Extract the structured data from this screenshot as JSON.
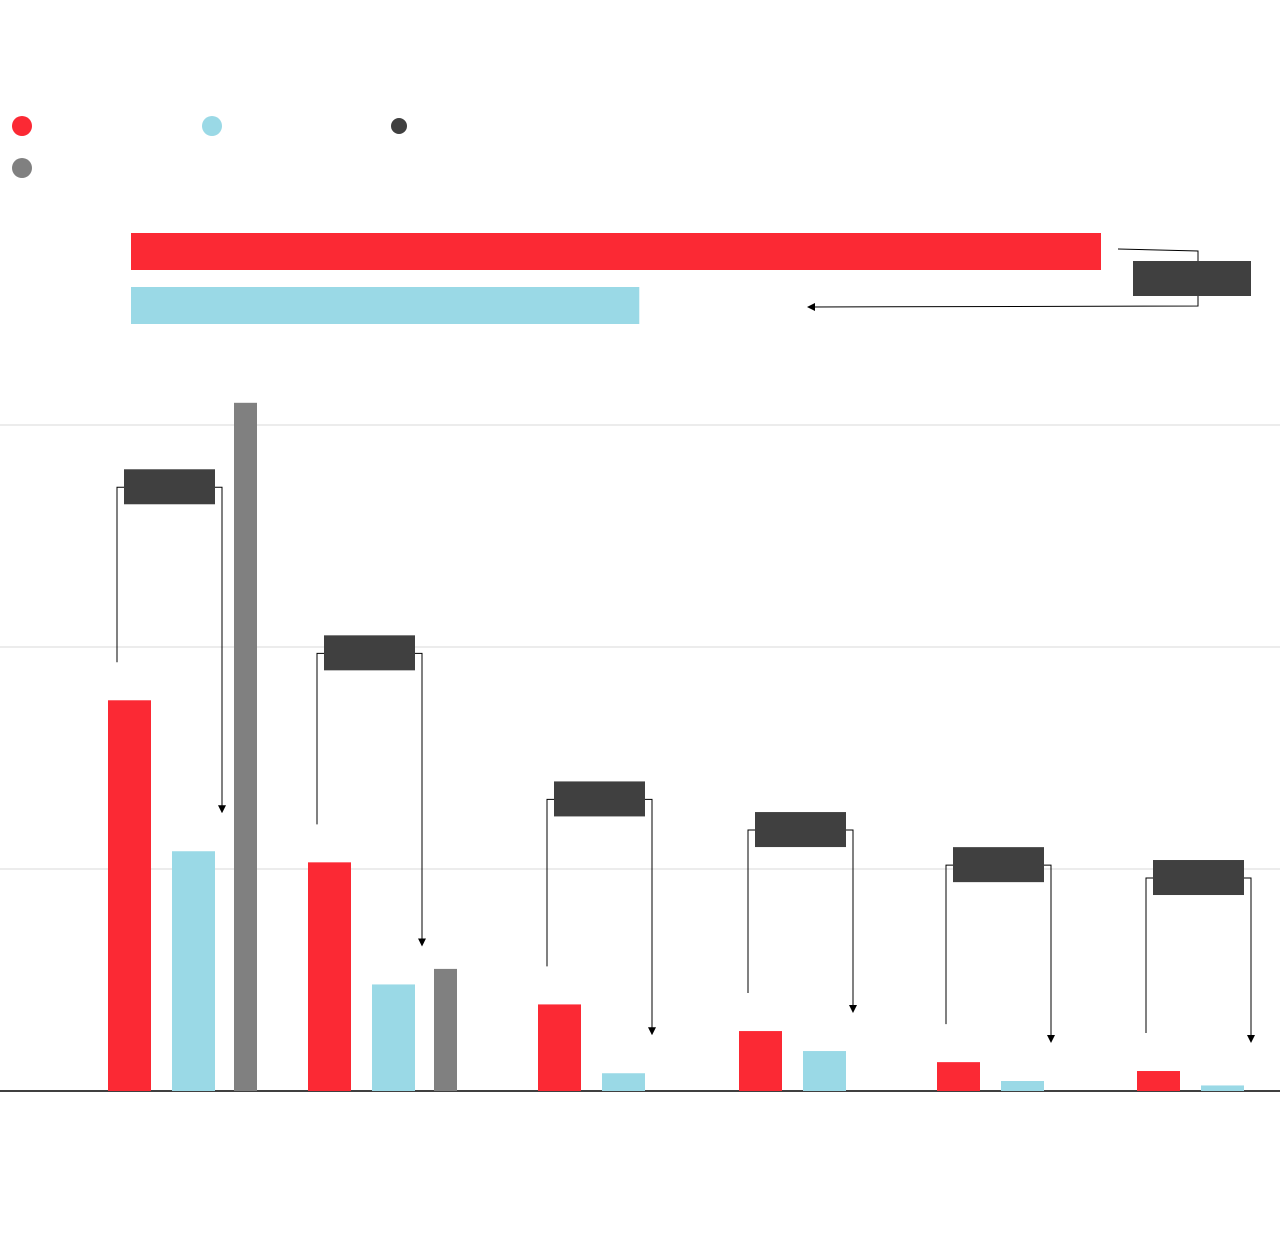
{
  "legend": [
    {
      "color": "#fb2934"
    },
    {
      "color": "#9ad9e6"
    },
    {
      "color": "#404040"
    },
    {
      "color": "#808080"
    }
  ],
  "chart_data": [
    {
      "type": "bar",
      "orientation": "horizontal",
      "series": [
        {
          "color": "#fb2934",
          "values": [
            100
          ]
        },
        {
          "color": "#9ad9e6",
          "values": [
            52.4
          ]
        }
      ],
      "annotation": {
        "label": ""
      }
    },
    {
      "type": "bar",
      "grid": true,
      "ylim": [
        0,
        3
      ],
      "categories": [
        "",
        "",
        "",
        "",
        "",
        ""
      ],
      "series": [
        {
          "color": "#fb2934",
          "values": [
            1.76,
            1.03,
            0.39,
            0.27,
            0.13,
            0.09
          ]
        },
        {
          "color": "#9ad9e6",
          "values": [
            1.08,
            0.48,
            0.08,
            0.18,
            0.045,
            0.025
          ]
        },
        {
          "color": "#808080",
          "values": [
            3.1,
            0.55,
            null,
            null,
            null,
            null
          ]
        }
      ],
      "annotations": [
        {
          "label": ""
        },
        {
          "label": ""
        },
        {
          "label": ""
        },
        {
          "label": ""
        },
        {
          "label": ""
        },
        {
          "label": ""
        }
      ]
    }
  ]
}
